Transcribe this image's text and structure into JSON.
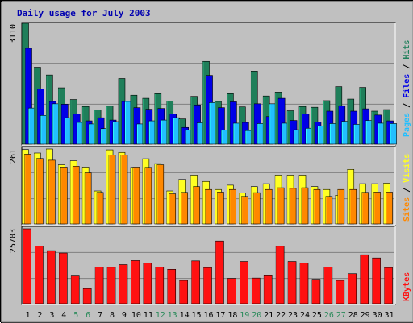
{
  "title": "Daily usage for July 2003",
  "colors": {
    "background": "#c0c0c0",
    "plot_bg": "#c0c0c0",
    "hits": "#1f7f5a",
    "files": "#0000e6",
    "pages": "#22bfff",
    "visits": "#ffff22",
    "sites": "#ff8800",
    "kbytes": "#ff1111",
    "weekend_label": "#2a8a5a",
    "title": "#0000b0"
  },
  "chart_data": [
    {
      "type": "bar",
      "panel": "top",
      "ymax_label": "3110",
      "side_label_parts": [
        "Pages",
        "Files",
        "Hits"
      ],
      "ylim": [
        0,
        3110
      ],
      "categories": [
        "1",
        "2",
        "3",
        "4",
        "5",
        "6",
        "7",
        "8",
        "9",
        "10",
        "11",
        "12",
        "13",
        "14",
        "15",
        "16",
        "17",
        "18",
        "19",
        "20",
        "21",
        "22",
        "23",
        "24",
        "25",
        "26",
        "27",
        "28",
        "29",
        "30",
        "31"
      ],
      "weekend_days": [
        "5",
        "6",
        "12",
        "13",
        "19",
        "20",
        "26",
        "27"
      ],
      "series": [
        {
          "name": "Hits",
          "values": [
            3110,
            1980,
            1780,
            1450,
            1150,
            970,
            880,
            980,
            1690,
            1260,
            1180,
            1300,
            1110,
            650,
            1230,
            2130,
            1100,
            1300,
            960,
            1880,
            1240,
            1340,
            860,
            970,
            950,
            1120,
            1480,
            1160,
            1460,
            850,
            890
          ]
        },
        {
          "name": "Files",
          "values": [
            2470,
            1420,
            1100,
            1030,
            780,
            600,
            680,
            620,
            1100,
            940,
            900,
            920,
            780,
            430,
            1010,
            1770,
            940,
            1090,
            560,
            1040,
            710,
            1180,
            610,
            780,
            570,
            850,
            990,
            850,
            910,
            750,
            600
          ]
        },
        {
          "name": "Pages",
          "values": [
            930,
            740,
            1040,
            680,
            560,
            520,
            400,
            580,
            1100,
            520,
            600,
            620,
            680,
            360,
            550,
            1070,
            360,
            540,
            350,
            530,
            1040,
            540,
            370,
            410,
            470,
            530,
            590,
            510,
            610,
            540,
            530
          ]
        }
      ]
    },
    {
      "type": "bar",
      "panel": "middle",
      "ymax_label": "261",
      "side_label_parts": [
        "Sites",
        "Visits"
      ],
      "ylim": [
        0,
        261
      ],
      "categories": [
        "1",
        "2",
        "3",
        "4",
        "5",
        "6",
        "7",
        "8",
        "9",
        "10",
        "11",
        "12",
        "13",
        "14",
        "15",
        "16",
        "17",
        "18",
        "19",
        "20",
        "21",
        "22",
        "23",
        "24",
        "25",
        "26",
        "27",
        "28",
        "29",
        "30",
        "31"
      ],
      "series": [
        {
          "name": "Visits",
          "values": [
            259,
            247,
            261,
            206,
            220,
            198,
            115,
            258,
            249,
            197,
            227,
            210,
            115,
            155,
            170,
            148,
            120,
            135,
            108,
            130,
            140,
            170,
            170,
            170,
            130,
            120,
            100,
            190,
            140,
            140,
            142
          ]
        },
        {
          "name": "Sites",
          "values": [
            243,
            228,
            222,
            198,
            201,
            178,
            110,
            240,
            240,
            198,
            197,
            206,
            105,
            110,
            130,
            120,
            111,
            120,
            96,
            109,
            120,
            126,
            124,
            126,
            120,
            96,
            120,
            120,
            110,
            111,
            111
          ]
        }
      ]
    },
    {
      "type": "bar",
      "panel": "bottom",
      "ymax_label": "25703",
      "side_label_parts": [
        "KBytes"
      ],
      "ylim": [
        0,
        25703
      ],
      "categories": [
        "1",
        "2",
        "3",
        "4",
        "5",
        "6",
        "7",
        "8",
        "9",
        "10",
        "11",
        "12",
        "13",
        "14",
        "15",
        "16",
        "17",
        "18",
        "19",
        "20",
        "21",
        "22",
        "23",
        "24",
        "25",
        "26",
        "27",
        "28",
        "29",
        "30",
        "31"
      ],
      "series": [
        {
          "name": "KBytes",
          "values": [
            25703,
            19800,
            18200,
            17400,
            9500,
            5200,
            12600,
            12500,
            13400,
            14800,
            13900,
            12600,
            11800,
            8000,
            14700,
            12400,
            21500,
            8700,
            14500,
            8800,
            9600,
            19700,
            14500,
            13900,
            8400,
            12600,
            8000,
            10300,
            16800,
            15700,
            12400
          ]
        }
      ]
    }
  ]
}
